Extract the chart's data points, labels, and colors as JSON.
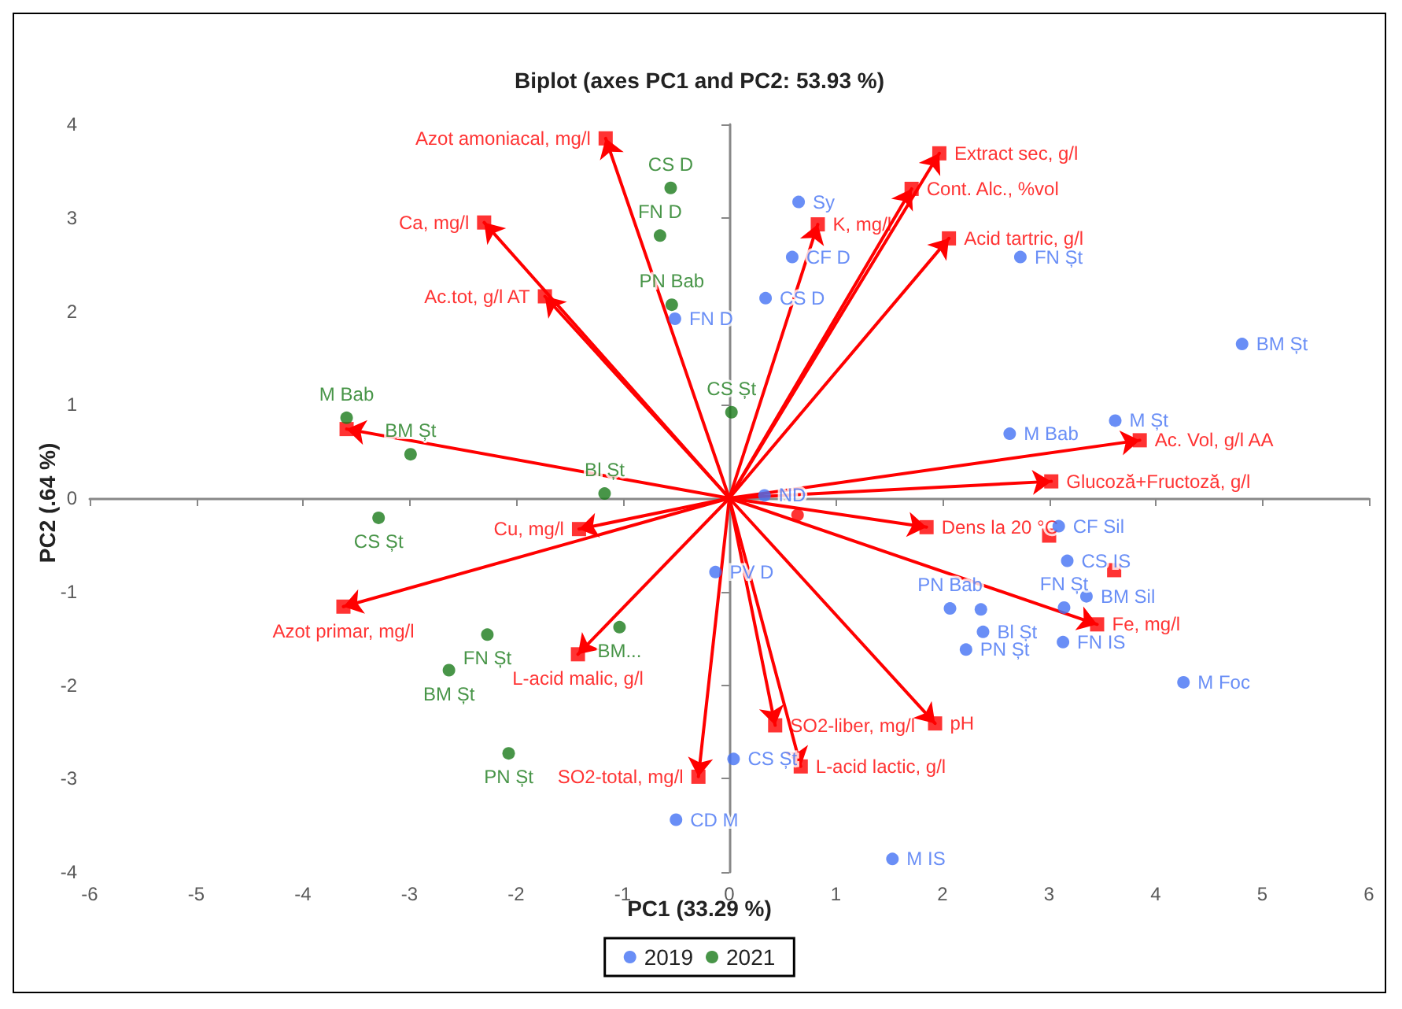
{
  "chart_data": {
    "type": "scatter",
    "title": "Biplot (axes PC1 and PC2: 53.93 %)",
    "xlabel": "PC1 (33.29 %)",
    "ylabel": "PC2 (.64 %)",
    "xlim": [
      -6,
      6
    ],
    "xticks": [
      -6,
      -5,
      -4,
      -3,
      -2,
      -1,
      0,
      1,
      2,
      3,
      4,
      5,
      6
    ],
    "ylim": [
      -4,
      4
    ],
    "yticks": [
      -4,
      -3,
      -2,
      -1,
      0,
      1,
      2,
      3,
      4
    ],
    "legend": "bottom",
    "marker": "circle",
    "series": [
      {
        "name": "2019",
        "color": "#4472f4",
        "x": [
          -0.51,
          0.65,
          0.59,
          0.34,
          2.73,
          4.81,
          2.63,
          3.62,
          0.33,
          3.09,
          3.17,
          3.14,
          3.35,
          3.13,
          4.26,
          2.07,
          2.36,
          2.38,
          2.22,
          1.53,
          0.04,
          -0.5,
          -0.13
        ],
        "values": [
          1.92,
          3.17,
          2.58,
          2.14,
          2.58,
          1.65,
          0.69,
          0.83,
          0.03,
          -0.3,
          -0.67,
          -1.17,
          -1.05,
          -1.54,
          -1.97,
          -1.18,
          -1.19,
          -1.43,
          -1.62,
          -3.86,
          -2.79,
          -3.44,
          -0.79
        ],
        "value_labels": [
          "FN D",
          "Sy",
          "CF D",
          "CS D",
          "FN Șt",
          "BM Șt",
          "M Bab",
          "M Șt",
          "ND",
          "CF Sil",
          "CS IS",
          "FN Șt",
          "BM Sil",
          "FN IS",
          "M Foc",
          "PN Bab",
          null,
          "Bl Șt",
          "PN Șt",
          "M IS",
          "CS Șt",
          "CD M",
          "PV D"
        ]
      },
      {
        "name": "2021",
        "color": "#1a7a1a",
        "x": [
          -0.55,
          -0.65,
          -0.54,
          0.02,
          -3.59,
          -2.99,
          -1.17,
          -3.29,
          -2.27,
          -2.63,
          -1.03,
          -2.07
        ],
        "values": [
          3.32,
          2.81,
          2.07,
          0.92,
          0.86,
          0.47,
          0.05,
          -0.21,
          -1.46,
          -1.84,
          -1.38,
          -2.73
        ],
        "value_labels": [
          "CS D",
          "FN D",
          "PN Bab",
          "CS Șt",
          "M Bab",
          "BM Șt",
          "Bl Șt",
          "CS Șt",
          "FN Șt",
          "BM Șt",
          "BM...",
          "PN Șt"
        ]
      },
      {
        "color": "#ff0000",
        "marker": "square",
        "line_style": "solid",
        "x": [
          -1.16,
          -2.3,
          -1.73,
          -3.59,
          1.97,
          1.71,
          0.83,
          2.06,
          3.85,
          3.02,
          1.85,
          3.45,
          0.43,
          0.67,
          1.93,
          -1.41,
          -3.62,
          -1.42,
          -0.29
        ],
        "values": [
          3.85,
          2.95,
          2.16,
          0.74,
          3.69,
          3.31,
          2.93,
          2.78,
          0.62,
          0.18,
          -0.31,
          -1.35,
          -2.43,
          -2.87,
          -2.41,
          -0.33,
          -1.16,
          -1.67,
          -2.98
        ],
        "value_labels": [
          "Azot amoniacal, mg/l",
          "Ca, mg/l",
          "Ac.tot, g/l AT",
          null,
          "Extract sec, g/l",
          "Cont. Alc., %vol",
          "K, mg/l",
          "Acid tartric, g/l",
          "Ac. Vol, g/l AA",
          "Glucoză+Fructoză, g/l",
          "Dens la 20 °C",
          "Fe, mg/l",
          "SO2-liber, mg/l",
          "L-acid lactic, g/l",
          "pH",
          "Cu, mg/l",
          "Azot primar, mg/l",
          "L-acid malic, g/l",
          "SO2-total, mg/l"
        ]
      },
      {
        "color": "#ff0000",
        "marker": "square",
        "x": [
          3.0,
          3.61
        ],
        "values": [
          -0.4,
          -0.77
        ]
      },
      {
        "color": "#ff0000",
        "marker": "circle",
        "x": [
          0.64
        ],
        "values": [
          -0.18
        ]
      }
    ]
  }
}
